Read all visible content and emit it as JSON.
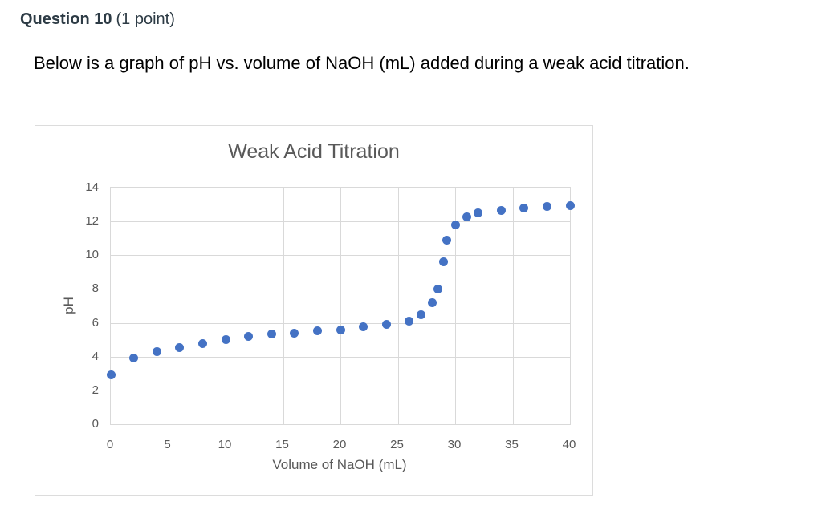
{
  "question": {
    "number_label": "Question 10",
    "points_label": "(1 point)",
    "prompt": "Below is a graph of pH vs. volume of NaOH (mL) added during a weak acid titration."
  },
  "colors": {
    "point": "#4472C4",
    "gridline": "#D9D9D9",
    "axis_text": "#595959",
    "chart_border": "#DCDCDC",
    "header_text": "#2D3B45"
  },
  "chart_data": {
    "type": "scatter",
    "title": "Weak Acid Titration",
    "xlabel": "Volume of NaOH (mL)",
    "ylabel": "pH",
    "xlim": [
      0,
      40
    ],
    "ylim": [
      0,
      14
    ],
    "x_ticks": [
      0,
      5,
      10,
      15,
      20,
      25,
      30,
      35,
      40
    ],
    "y_ticks": [
      0,
      2,
      4,
      6,
      8,
      10,
      12,
      14
    ],
    "grid": true,
    "legend": false,
    "series": [
      {
        "name": "pH",
        "x": [
          0,
          2,
          4,
          6,
          8,
          10,
          12,
          14,
          16,
          18,
          20,
          22,
          24,
          26,
          27,
          28,
          28.5,
          29,
          29.3,
          30,
          31,
          32,
          34,
          36,
          38,
          40
        ],
        "y": [
          2.9,
          3.9,
          4.3,
          4.55,
          4.75,
          5.0,
          5.2,
          5.35,
          5.4,
          5.55,
          5.6,
          5.75,
          5.9,
          6.1,
          6.5,
          7.2,
          8.0,
          9.6,
          10.9,
          11.8,
          12.25,
          12.5,
          12.65,
          12.8,
          12.9,
          12.95
        ]
      }
    ]
  }
}
